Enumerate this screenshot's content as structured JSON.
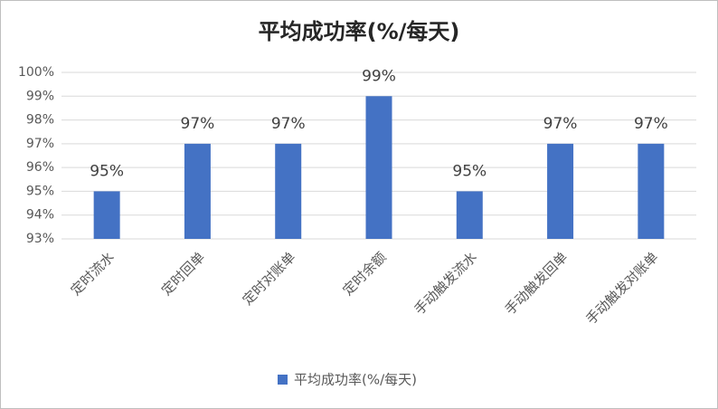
{
  "chart_data": {
    "type": "bar",
    "title": "平均成功率(%/每天)",
    "categories": [
      "定时流水",
      "定时回单",
      "定时对账单",
      "定时余额",
      "手动触发流水",
      "手动触发回单",
      "手动触发对账单"
    ],
    "series": [
      {
        "name": "平均成功率(%/每天)",
        "color": "#4472c4",
        "values": [
          95,
          97,
          97,
          99,
          95,
          97,
          97
        ],
        "value_labels": [
          "95%",
          "97%",
          "97%",
          "99%",
          "95%",
          "97%",
          "97%"
        ]
      }
    ],
    "ylim": [
      93,
      100
    ],
    "yticks": [
      {
        "value": 93,
        "label": "93%"
      },
      {
        "value": 94,
        "label": "94%"
      },
      {
        "value": 95,
        "label": "95%"
      },
      {
        "value": 96,
        "label": "96%"
      },
      {
        "value": 97,
        "label": "97%"
      },
      {
        "value": 98,
        "label": "98%"
      },
      {
        "value": 99,
        "label": "99%"
      },
      {
        "value": 100,
        "label": "100%"
      }
    ],
    "grid": true,
    "legend": "bottom"
  }
}
